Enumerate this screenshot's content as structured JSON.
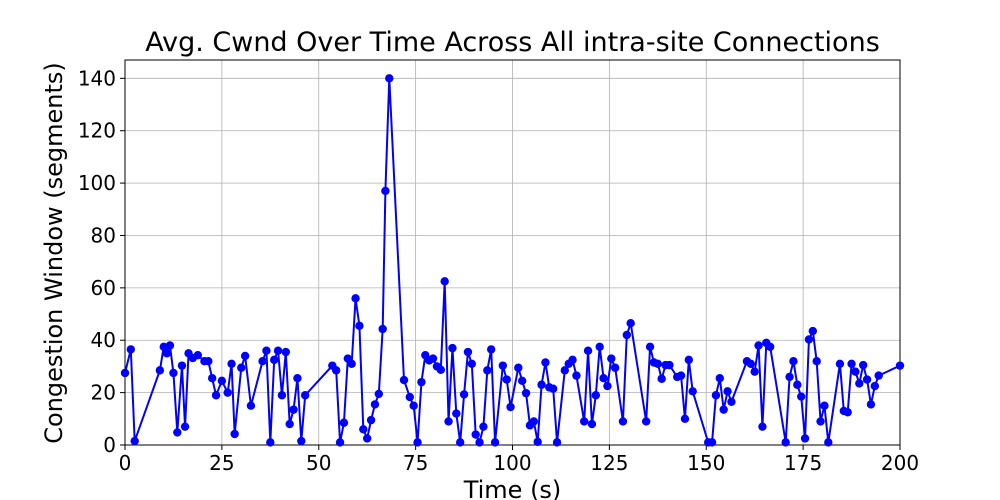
{
  "chart_data": {
    "type": "line",
    "title": "Avg. Cwnd Over Time Across All intra-site Connections",
    "xlabel": "Time (s)",
    "ylabel": "Congestion Window (segments)",
    "xlim": [
      0,
      200
    ],
    "ylim": [
      0,
      147
    ],
    "xticks": [
      0,
      25,
      50,
      75,
      100,
      125,
      150,
      175,
      200
    ],
    "yticks": [
      0,
      20,
      40,
      60,
      80,
      100,
      120,
      140
    ],
    "grid": true,
    "line_color": "#0000ff",
    "marker": "circle",
    "series": [
      {
        "x": [
          0,
          1.5,
          2.5,
          9,
          10,
          10.8,
          11.6,
          12.5,
          13.5,
          14.7,
          15.5,
          16.4,
          17.5,
          18.8,
          20.5,
          21.5,
          22.5,
          23.5,
          25,
          26.5,
          27.5,
          28.3,
          30,
          31,
          32.5,
          35.5,
          36.5,
          37.5,
          38.5,
          39.5,
          40.5,
          41.5,
          42.5,
          43.5,
          44.5,
          45.5,
          46.5,
          53.5,
          54.5,
          55.5,
          56.5,
          57.5,
          58.5,
          59.5,
          60.5,
          61.5,
          62.5,
          63.5,
          64.5,
          65.5,
          66.5,
          67.2,
          68.2,
          72,
          73.5,
          74.5,
          75.5,
          76.5,
          77.5,
          78.5,
          79.5,
          80.5,
          81.5,
          82.5,
          83.5,
          84.5,
          85.5,
          86.5,
          87.5,
          88.5,
          89.5,
          90.5,
          91.5,
          92.5,
          93.5,
          94.5,
          95.5,
          97.5,
          98.5,
          99.5,
          101.5,
          102.5,
          103.5,
          104.5,
          105.5,
          106.5,
          107.5,
          108.5,
          109.5,
          110.5,
          111.5,
          113.5,
          114.5,
          115.5,
          116.5,
          118.5,
          119.5,
          120.5,
          121.5,
          122.5,
          123.5,
          124.5,
          125.5,
          126.5,
          128.5,
          129.5,
          130.5,
          134.5,
          135.5,
          136.5,
          137.5,
          138.5,
          139.5,
          140.5,
          142.5,
          143.5,
          144.5,
          145.5,
          146.5,
          150.5,
          151.5,
          152.5,
          153.5,
          154.5,
          155.5,
          156.5,
          160.5,
          161.5,
          162.5,
          163.5,
          164.5,
          165.5,
          166.5,
          170.5,
          171.5,
          172.5,
          173.5,
          174.5,
          175.5,
          176.5,
          177.5,
          178.5,
          179.5,
          180.5,
          181.5,
          184.5,
          185.5,
          186.5,
          187.5,
          188.5,
          189.5,
          190.5,
          191.5,
          192.5,
          193.5,
          194.5,
          200
        ],
        "y": [
          27.5,
          36.5,
          1.5,
          28.5,
          37.5,
          35,
          38,
          27.5,
          4.8,
          30.3,
          7,
          35,
          33.2,
          34.3,
          32,
          32,
          25.5,
          19,
          24.5,
          20,
          31,
          4.2,
          29.5,
          34,
          15,
          32,
          36,
          1,
          32.5,
          36,
          19,
          35.5,
          8,
          13.5,
          25.5,
          1.5,
          19,
          30.3,
          28.5,
          1,
          8.5,
          33,
          31,
          56,
          45.5,
          6,
          2.5,
          9.5,
          15.5,
          19.5,
          44.3,
          97,
          140,
          24.8,
          18.3,
          15,
          1,
          24,
          34.3,
          32.3,
          33,
          30,
          28.7,
          62.5,
          9,
          37,
          12,
          1,
          19.3,
          35.5,
          31,
          4,
          1,
          7,
          28.5,
          36.5,
          1,
          30.3,
          25,
          14.5,
          29.5,
          24.5,
          19.8,
          7.5,
          9,
          1.2,
          23,
          31.5,
          22,
          21.5,
          1,
          28.5,
          31,
          32.5,
          26.5,
          9,
          36,
          8,
          19,
          37.5,
          25.5,
          22.5,
          33,
          29.5,
          9,
          42,
          46.5,
          9,
          37.5,
          31.5,
          31,
          25.3,
          30.5,
          30.5,
          26,
          26.5,
          10,
          32.5,
          20.5,
          1,
          1,
          19,
          25.5,
          13.5,
          20.5,
          16.5,
          32,
          31,
          28,
          38,
          7,
          39,
          37.5,
          1,
          26,
          32,
          23,
          18.5,
          2.5,
          40.3,
          43.5,
          32,
          9,
          15,
          1,
          31,
          13,
          12.5,
          31,
          28,
          23.5,
          30.5,
          25,
          15.5,
          22.5,
          26.5,
          30.3
        ]
      }
    ]
  }
}
